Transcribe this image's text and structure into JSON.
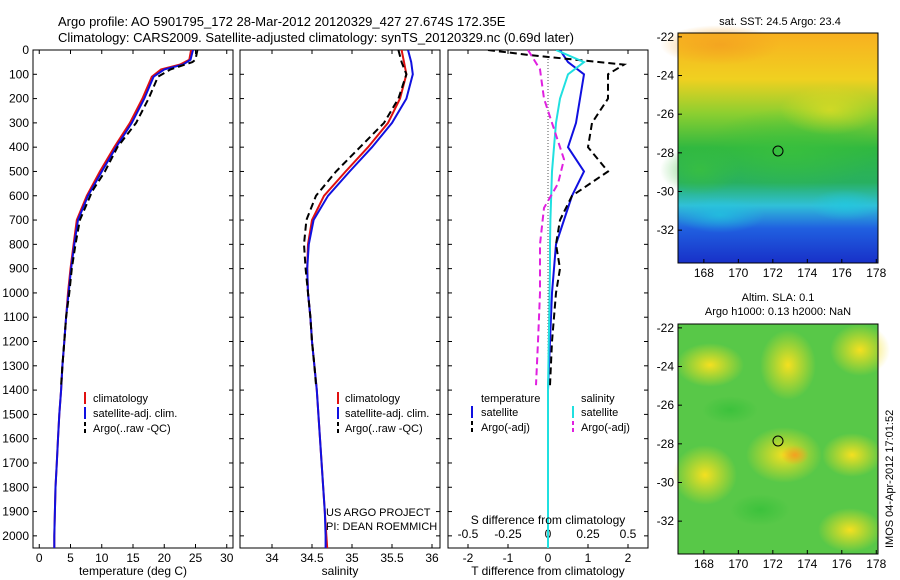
{
  "header": {
    "line1": "Argo profile: AO 5901795_172 28-Mar-2012 20120329_427 27.674S 172.35E",
    "line2": "Climatology: CARS2009. Satellite-adjusted climatology: synTS_20120329.nc (0.69d later)"
  },
  "chart_data": [
    {
      "type": "line",
      "id": "temperature-profile",
      "xlabel": "temperature (deg C)",
      "xlim": [
        -1,
        31
      ],
      "ylim": [
        2050,
        0
      ],
      "xticks": [
        0,
        5,
        10,
        15,
        20,
        25,
        30
      ],
      "yticks": [
        0,
        100,
        200,
        300,
        400,
        500,
        600,
        700,
        800,
        900,
        1000,
        1100,
        1200,
        1300,
        1400,
        1500,
        1600,
        1700,
        1800,
        1900,
        2000
      ],
      "legend": [
        "climatology",
        "satellite-adj. clim.",
        "Argo(..raw -QC)"
      ],
      "series": [
        {
          "name": "climatology",
          "color": "#e01010",
          "dash": "",
          "points": [
            [
              24.3,
              0
            ],
            [
              24,
              40
            ],
            [
              22.5,
              60
            ],
            [
              19.5,
              80
            ],
            [
              18,
              110
            ],
            [
              16.5,
              200
            ],
            [
              14.5,
              300
            ],
            [
              12,
              400
            ],
            [
              9.7,
              500
            ],
            [
              7.6,
              600
            ],
            [
              6,
              700
            ],
            [
              5.5,
              800
            ],
            [
              5,
              900
            ],
            [
              4.6,
              1000
            ],
            [
              4.3,
              1100
            ],
            [
              4,
              1200
            ],
            [
              3.7,
              1300
            ],
            [
              3.5,
              1400
            ],
            [
              3.2,
              1500
            ],
            [
              3,
              1600
            ],
            [
              2.8,
              1700
            ],
            [
              2.6,
              1800
            ],
            [
              2.5,
              1900
            ],
            [
              2.4,
              2000
            ],
            [
              2.4,
              2050
            ]
          ]
        },
        {
          "name": "satellite-adj. clim.",
          "color": "#1010e0",
          "dash": "",
          "points": [
            [
              24.6,
              0
            ],
            [
              24.2,
              40
            ],
            [
              23,
              60
            ],
            [
              20,
              80
            ],
            [
              18.3,
              110
            ],
            [
              16.8,
              200
            ],
            [
              14.8,
              300
            ],
            [
              12.3,
              400
            ],
            [
              10,
              500
            ],
            [
              7.8,
              600
            ],
            [
              6.2,
              700
            ],
            [
              5.6,
              800
            ],
            [
              5.1,
              900
            ],
            [
              4.7,
              1000
            ],
            [
              4.3,
              1100
            ],
            [
              4,
              1200
            ],
            [
              3.7,
              1300
            ],
            [
              3.5,
              1400
            ],
            [
              3.2,
              1500
            ],
            [
              3,
              1600
            ],
            [
              2.8,
              1700
            ],
            [
              2.6,
              1800
            ],
            [
              2.5,
              1900
            ],
            [
              2.4,
              2000
            ],
            [
              2.4,
              2050
            ]
          ]
        },
        {
          "name": "Argo(..raw -QC)",
          "color": "#000000",
          "dash": "7,4",
          "points": [
            [
              25.3,
              0
            ],
            [
              25,
              40
            ],
            [
              24.5,
              50
            ],
            [
              21,
              80
            ],
            [
              19,
              110
            ],
            [
              17.5,
              200
            ],
            [
              15.5,
              300
            ],
            [
              12.5,
              400
            ],
            [
              10.5,
              500
            ],
            [
              8.5,
              580
            ],
            [
              6.5,
              700
            ],
            [
              5.8,
              800
            ],
            [
              5.2,
              900
            ],
            [
              4.8,
              1000
            ],
            [
              4.3,
              1100
            ],
            [
              4,
              1200
            ],
            [
              3.7,
              1300
            ],
            [
              3.5,
              1380
            ]
          ]
        }
      ]
    },
    {
      "type": "line",
      "id": "salinity-profile",
      "xlabel": "salinity",
      "xlim": [
        33.6,
        36.1
      ],
      "ylim": [
        2050,
        0
      ],
      "xticks": [
        34,
        34.5,
        35,
        35.5,
        36
      ],
      "legend": [
        "climatology",
        "satellite-adj. clim.",
        "Argo(..raw -QC)"
      ],
      "annotation": [
        "US ARGO PROJECT",
        "PI: DEAN ROEMMICH"
      ],
      "series": [
        {
          "name": "climatology",
          "color": "#e01010",
          "dash": "",
          "points": [
            [
              35.62,
              0
            ],
            [
              35.65,
              50
            ],
            [
              35.68,
              100
            ],
            [
              35.6,
              200
            ],
            [
              35.45,
              300
            ],
            [
              35.2,
              400
            ],
            [
              34.92,
              500
            ],
            [
              34.65,
              600
            ],
            [
              34.5,
              700
            ],
            [
              34.45,
              800
            ],
            [
              34.44,
              900
            ],
            [
              34.45,
              1000
            ],
            [
              34.48,
              1100
            ],
            [
              34.5,
              1200
            ],
            [
              34.53,
              1300
            ],
            [
              34.56,
              1400
            ],
            [
              34.58,
              1500
            ],
            [
              34.6,
              1600
            ],
            [
              34.62,
              1700
            ],
            [
              34.64,
              1800
            ],
            [
              34.66,
              1900
            ],
            [
              34.68,
              2000
            ],
            [
              34.69,
              2050
            ]
          ]
        },
        {
          "name": "satellite-adj. clim.",
          "color": "#1010e0",
          "dash": "",
          "points": [
            [
              35.7,
              0
            ],
            [
              35.74,
              50
            ],
            [
              35.76,
              100
            ],
            [
              35.68,
              200
            ],
            [
              35.5,
              300
            ],
            [
              35.25,
              400
            ],
            [
              34.97,
              500
            ],
            [
              34.7,
              600
            ],
            [
              34.52,
              700
            ],
            [
              34.46,
              800
            ],
            [
              34.44,
              900
            ],
            [
              34.45,
              1000
            ],
            [
              34.48,
              1100
            ],
            [
              34.5,
              1200
            ],
            [
              34.53,
              1300
            ],
            [
              34.56,
              1400
            ],
            [
              34.58,
              1500
            ],
            [
              34.6,
              1600
            ],
            [
              34.62,
              1700
            ],
            [
              34.64,
              1800
            ],
            [
              34.66,
              1900
            ],
            [
              34.67,
              2000
            ],
            [
              34.67,
              2050
            ]
          ]
        },
        {
          "name": "Argo(..raw -QC)",
          "color": "#000000",
          "dash": "7,4",
          "points": [
            [
              35.58,
              0
            ],
            [
              35.62,
              50
            ],
            [
              35.68,
              100
            ],
            [
              35.58,
              200
            ],
            [
              35.4,
              300
            ],
            [
              35.1,
              400
            ],
            [
              34.8,
              500
            ],
            [
              34.55,
              600
            ],
            [
              34.43,
              700
            ],
            [
              34.4,
              800
            ],
            [
              34.42,
              900
            ],
            [
              34.45,
              1000
            ],
            [
              34.48,
              1100
            ],
            [
              34.5,
              1200
            ],
            [
              34.53,
              1300
            ],
            [
              34.55,
              1380
            ]
          ]
        }
      ]
    },
    {
      "type": "line",
      "id": "difference-profile",
      "xlabel": "T difference from climatology",
      "xlabel2": "S difference from climatology",
      "xlim": [
        -2.5,
        2.5
      ],
      "ylim": [
        2050,
        0
      ],
      "xticks": [
        -2,
        -1,
        0,
        1,
        2
      ],
      "xticks_top": [
        -0.5,
        -0.25,
        0,
        0.25,
        0.5
      ],
      "legend_left": {
        "title": "temperature",
        "items": [
          "satellite",
          "Argo(-adj)"
        ]
      },
      "legend_right": {
        "title": "salinity",
        "items": [
          "satellite",
          "Argo(-adj)"
        ]
      },
      "series": [
        {
          "name": "T satellite",
          "color": "#1010e0",
          "dash": "",
          "points": [
            [
              0.3,
              0
            ],
            [
              0.5,
              50
            ],
            [
              0.9,
              100
            ],
            [
              0.8,
              200
            ],
            [
              0.7,
              300
            ],
            [
              0.5,
              400
            ],
            [
              0.9,
              500
            ],
            [
              0.6,
              600
            ],
            [
              0.4,
              700
            ],
            [
              0.2,
              800
            ],
            [
              0.15,
              900
            ],
            [
              0.1,
              1000
            ],
            [
              0.05,
              1200
            ],
            [
              0,
              1400
            ],
            [
              0,
              2050
            ]
          ]
        },
        {
          "name": "T Argo(-adj)",
          "color": "#000000",
          "dash": "7,4",
          "points": [
            [
              -1.5,
              0
            ],
            [
              -0.5,
              20
            ],
            [
              1.9,
              60
            ],
            [
              1.5,
              100
            ],
            [
              1.5,
              200
            ],
            [
              1.1,
              300
            ],
            [
              1,
              400
            ],
            [
              1.5,
              500
            ],
            [
              0.6,
              600
            ],
            [
              0.3,
              700
            ],
            [
              0.2,
              800
            ],
            [
              0.3,
              900
            ],
            [
              0.2,
              1000
            ],
            [
              0.15,
              1100
            ],
            [
              0.1,
              1200
            ],
            [
              0.05,
              1380
            ]
          ]
        },
        {
          "name": "S satellite",
          "color": "#20e0e0",
          "dash": "",
          "points": [
            [
              0.2,
              0
            ],
            [
              0.9,
              50
            ],
            [
              0.5,
              100
            ],
            [
              0.3,
              200
            ],
            [
              0.2,
              300
            ],
            [
              0.15,
              400
            ],
            [
              0.1,
              500
            ],
            [
              0.08,
              600
            ],
            [
              0.06,
              700
            ],
            [
              0.05,
              800
            ],
            [
              0.05,
              900
            ],
            [
              0.04,
              1000
            ],
            [
              0.02,
              1200
            ],
            [
              0,
              1400
            ],
            [
              0,
              2050
            ]
          ]
        },
        {
          "name": "S Argo(-adj)",
          "color": "#e020e0",
          "dash": "7,4",
          "points": [
            [
              -0.5,
              0
            ],
            [
              -0.2,
              80
            ],
            [
              -0.1,
              200
            ],
            [
              0.1,
              300
            ],
            [
              0.4,
              450
            ],
            [
              0.25,
              550
            ],
            [
              -0.1,
              650
            ],
            [
              -0.2,
              800
            ],
            [
              -0.2,
              1000
            ],
            [
              -0.25,
              1200
            ],
            [
              -0.3,
              1380
            ]
          ]
        }
      ]
    }
  ],
  "maps": {
    "top": {
      "title": "sat. SST: 24.5 Argo: 23.4",
      "xticks": [
        168,
        170,
        172,
        174,
        176,
        178
      ],
      "yticks": [
        -22,
        -24,
        -26,
        -28,
        -30,
        -32
      ]
    },
    "bottom": {
      "title1": "Altim. SLA: 0.1",
      "title2": "Argo h1000: 0.13 h2000: NaN",
      "xticks": [
        168,
        170,
        172,
        174,
        176,
        178
      ],
      "yticks": [
        -22,
        -24,
        -26,
        -28,
        -30,
        -32
      ]
    },
    "watermark": "IMOS 04-Apr-2012 17:01:52"
  }
}
